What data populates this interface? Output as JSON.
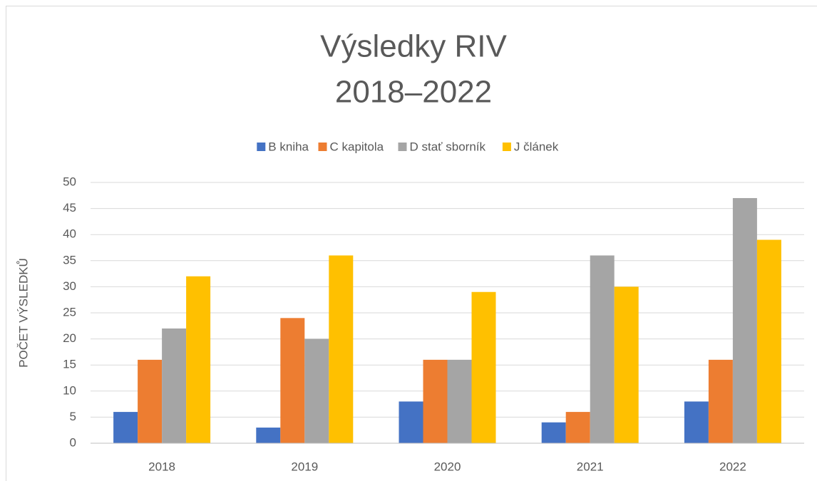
{
  "chart_data": {
    "type": "bar",
    "title": [
      "Výsledky RIV",
      "2018–2022"
    ],
    "ylabel": "POČET VÝSLEDKŮ",
    "categories": [
      "2018",
      "2019",
      "2020",
      "2021",
      "2022"
    ],
    "series": [
      {
        "name": "B kniha",
        "color": "#4472c4",
        "values": [
          6,
          3,
          8,
          4,
          8
        ]
      },
      {
        "name": "C kapitola",
        "color": "#ed7d31",
        "values": [
          16,
          24,
          16,
          6,
          16
        ]
      },
      {
        "name": "D stať sborník",
        "color": "#a5a5a5",
        "values": [
          22,
          20,
          16,
          36,
          47
        ]
      },
      {
        "name": "J článek",
        "color": "#ffc000",
        "values": [
          32,
          36,
          29,
          30,
          39
        ]
      }
    ],
    "ylim": [
      0,
      50
    ],
    "yticks": [
      0,
      5,
      10,
      15,
      20,
      25,
      30,
      35,
      40,
      45,
      50
    ],
    "grid": true,
    "legend": "top"
  }
}
